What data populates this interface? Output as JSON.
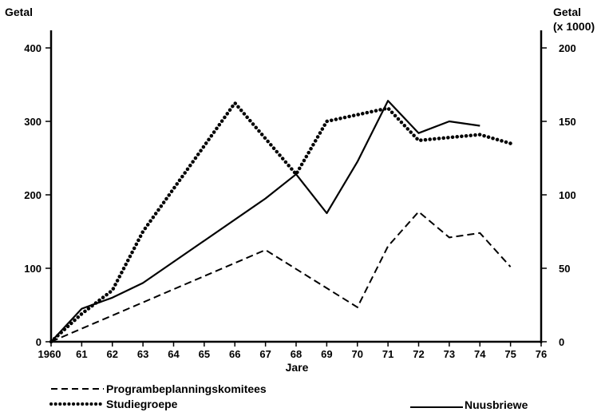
{
  "chart_data": {
    "type": "line",
    "xlabel": "Jare",
    "ylabel_left": "Getal",
    "ylabel_right_line1": "Getal",
    "ylabel_right_line2": "(x 1000)",
    "xlim": [
      1960,
      1976
    ],
    "ylim_left": [
      0,
      400
    ],
    "ylim_right": [
      0,
      200
    ],
    "x_ticks": [
      {
        "value": 1960,
        "label": "1960"
      },
      {
        "value": 1961,
        "label": "61"
      },
      {
        "value": 1962,
        "label": "62"
      },
      {
        "value": 1963,
        "label": "63"
      },
      {
        "value": 1964,
        "label": "64"
      },
      {
        "value": 1965,
        "label": "65"
      },
      {
        "value": 1966,
        "label": "66"
      },
      {
        "value": 1967,
        "label": "67"
      },
      {
        "value": 1968,
        "label": "68"
      },
      {
        "value": 1969,
        "label": "69"
      },
      {
        "value": 1970,
        "label": "70"
      },
      {
        "value": 1971,
        "label": "71"
      },
      {
        "value": 1972,
        "label": "72"
      },
      {
        "value": 1973,
        "label": "73"
      },
      {
        "value": 1974,
        "label": "74"
      },
      {
        "value": 1975,
        "label": "75"
      },
      {
        "value": 1976,
        "label": "76"
      }
    ],
    "y_ticks_left": [
      {
        "value": 0,
        "label": "0"
      },
      {
        "value": 100,
        "label": "100"
      },
      {
        "value": 200,
        "label": "200"
      },
      {
        "value": 300,
        "label": "300"
      },
      {
        "value": 400,
        "label": "400"
      }
    ],
    "y_ticks_right": [
      {
        "value": 0,
        "label": "0"
      },
      {
        "value": 50,
        "label": "50"
      },
      {
        "value": 100,
        "label": "100"
      },
      {
        "value": 150,
        "label": "150"
      },
      {
        "value": 200,
        "label": "200"
      }
    ],
    "series": [
      {
        "name": "Programbeplanningskomitees",
        "style": "dashed",
        "axis": "left",
        "x": [
          1960,
          1967,
          1970,
          1971,
          1972,
          1973,
          1974,
          1975
        ],
        "y": [
          0,
          125,
          47,
          130,
          177,
          142,
          148,
          102
        ]
      },
      {
        "name": "Studiegroepe",
        "style": "dotted",
        "axis": "left",
        "x": [
          1960,
          1961,
          1962,
          1963,
          1966,
          1968,
          1969,
          1971,
          1972,
          1973,
          1974,
          1975
        ],
        "y": [
          0,
          38,
          70,
          150,
          325,
          228,
          300,
          318,
          274,
          278,
          282,
          270
        ]
      },
      {
        "name": "Nuusbriewe",
        "style": "solid",
        "axis": "left",
        "x": [
          1960,
          1961,
          1962,
          1963,
          1967,
          1968,
          1969,
          1970,
          1971,
          1972,
          1973,
          1974
        ],
        "y": [
          0,
          45,
          60,
          80,
          195,
          228,
          175,
          245,
          328,
          284,
          300,
          294
        ]
      }
    ]
  }
}
